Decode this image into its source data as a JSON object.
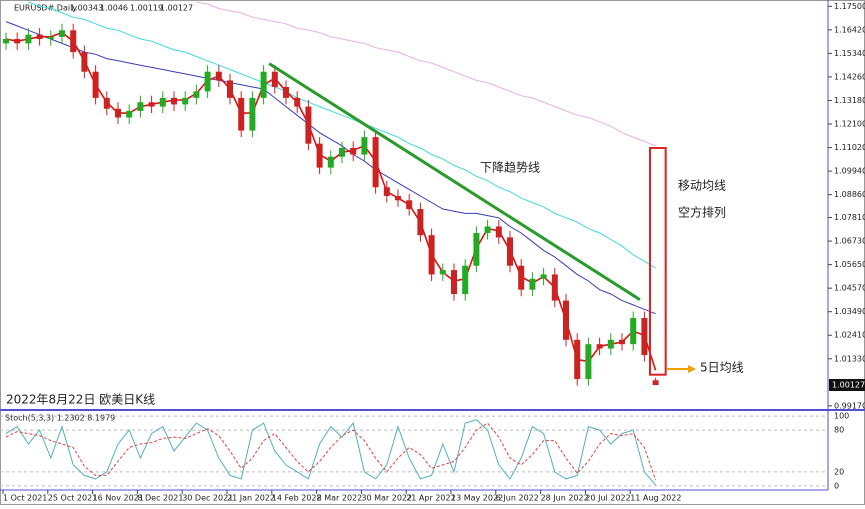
{
  "chart_data": [
    {
      "type": "candlestick",
      "symbol": "EURUSD#,Daily",
      "subtitle": "2022年8月22日 欧美日K线",
      "categories": [
        "1 Oct 2021",
        null,
        null,
        null,
        "25 Oct 2021",
        null,
        null,
        null,
        "16 Nov 2021",
        null,
        null,
        null,
        "8 Dec 2021",
        null,
        null,
        null,
        "30 Dec 2021",
        null,
        null,
        null,
        "21 Jan 2022",
        null,
        null,
        null,
        "14 Feb 2022",
        null,
        null,
        null,
        "8 Mar 2022",
        null,
        null,
        null,
        "30 Mar 2022",
        null,
        null,
        null,
        "21 Apr 2022",
        null,
        null,
        null,
        "13 May 2022",
        null,
        null,
        null,
        "6 Jun 2022",
        null,
        null,
        null,
        "28 Jun 2022",
        null,
        null,
        null,
        "20 Jul 2022",
        null,
        null,
        null,
        "11 Aug 2022",
        null,
        null
      ],
      "open": [
        1.158,
        1.16,
        1.158,
        1.162,
        1.16,
        1.161,
        1.164,
        1.154,
        1.145,
        1.133,
        1.128,
        1.124,
        1.127,
        1.131,
        1.129,
        1.133,
        1.13,
        1.133,
        1.136,
        1.145,
        1.141,
        1.133,
        1.118,
        1.133,
        1.145,
        1.138,
        1.133,
        1.129,
        1.112,
        1.101,
        1.106,
        1.11,
        1.107,
        1.115,
        1.092,
        1.088,
        1.086,
        1.082,
        1.07,
        1.052,
        1.054,
        1.043,
        1.056,
        1.071,
        1.074,
        1.069,
        1.056,
        1.045,
        1.05,
        1.052,
        1.04,
        1.022,
        1.004,
        1.02,
        1.018,
        1.022,
        1.02,
        1.032,
        1.00343
      ],
      "high": [
        1.163,
        1.163,
        1.165,
        1.165,
        1.164,
        1.167,
        1.167,
        1.157,
        1.148,
        1.136,
        1.131,
        1.13,
        1.134,
        1.134,
        1.136,
        1.136,
        1.136,
        1.139,
        1.148,
        1.148,
        1.144,
        1.136,
        1.136,
        1.148,
        1.148,
        1.141,
        1.136,
        1.132,
        1.115,
        1.109,
        1.113,
        1.113,
        1.118,
        1.118,
        1.095,
        1.091,
        1.089,
        1.085,
        1.073,
        1.057,
        1.057,
        1.059,
        1.074,
        1.077,
        1.077,
        1.072,
        1.059,
        1.053,
        1.055,
        1.055,
        1.043,
        1.025,
        1.023,
        1.023,
        1.025,
        1.025,
        1.035,
        1.035,
        1.0046
      ],
      "low": [
        1.155,
        1.155,
        1.155,
        1.157,
        1.157,
        1.158,
        1.151,
        1.142,
        1.13,
        1.125,
        1.121,
        1.121,
        1.124,
        1.126,
        1.126,
        1.127,
        1.127,
        1.13,
        1.133,
        1.138,
        1.13,
        1.115,
        1.115,
        1.13,
        1.135,
        1.13,
        1.126,
        1.109,
        1.098,
        1.098,
        1.103,
        1.104,
        1.104,
        1.089,
        1.085,
        1.083,
        1.079,
        1.067,
        1.049,
        1.049,
        1.04,
        1.04,
        1.053,
        1.068,
        1.066,
        1.053,
        1.042,
        1.042,
        1.047,
        1.037,
        1.019,
        1.001,
        1.001,
        1.015,
        1.015,
        1.017,
        1.017,
        1.012,
        1.00119
      ],
      "close": [
        1.16,
        1.158,
        1.162,
        1.16,
        1.161,
        1.164,
        1.154,
        1.145,
        1.133,
        1.128,
        1.124,
        1.127,
        1.131,
        1.129,
        1.133,
        1.13,
        1.133,
        1.136,
        1.145,
        1.141,
        1.133,
        1.118,
        1.133,
        1.145,
        1.138,
        1.133,
        1.129,
        1.112,
        1.101,
        1.106,
        1.11,
        1.107,
        1.115,
        1.092,
        1.088,
        1.086,
        1.082,
        1.07,
        1.052,
        1.054,
        1.043,
        1.056,
        1.071,
        1.074,
        1.069,
        1.056,
        1.045,
        1.05,
        1.052,
        1.04,
        1.022,
        1.004,
        1.02,
        1.018,
        1.022,
        1.02,
        1.032,
        1.015,
        1.00127
      ],
      "up_color": "#22aa22",
      "down_color": "#cc2222",
      "overlays": [
        {
          "color": "#e8b0e8",
          "values": [
            null,
            null,
            null,
            null,
            null,
            null,
            null,
            null,
            null,
            null,
            null,
            null,
            null,
            null,
            null,
            null,
            null,
            1.177,
            1.176,
            1.174,
            1.173,
            1.172,
            1.17,
            1.169,
            1.168,
            1.167,
            1.165,
            1.164,
            1.163,
            1.161,
            1.16,
            1.159,
            1.158,
            1.156,
            1.155,
            1.154,
            1.152,
            1.15,
            1.149,
            1.147,
            1.145,
            1.143,
            1.141,
            1.14,
            1.138,
            1.136,
            1.134,
            1.133,
            1.131,
            1.129,
            1.127,
            1.125,
            1.124,
            1.122,
            1.12,
            1.117,
            1.115,
            1.113,
            1.111
          ]
        },
        {
          "color": "#40d8e0",
          "values": [
            null,
            null,
            1.177,
            1.175,
            1.174,
            1.172,
            1.17,
            1.169,
            1.167,
            1.165,
            1.164,
            1.162,
            1.16,
            1.159,
            1.157,
            1.155,
            1.154,
            1.152,
            1.15,
            1.148,
            1.146,
            1.144,
            1.142,
            1.14,
            1.138,
            1.136,
            1.133,
            1.131,
            1.129,
            1.127,
            1.125,
            1.123,
            1.121,
            1.119,
            1.117,
            1.115,
            1.112,
            1.11,
            1.107,
            1.105,
            1.102,
            1.1,
            1.097,
            1.095,
            1.092,
            1.09,
            1.087,
            1.085,
            1.083,
            1.08,
            1.078,
            1.076,
            1.073,
            1.071,
            1.068,
            1.065,
            1.061,
            1.058,
            1.055
          ]
        },
        {
          "color": "#3a3ab8",
          "values": [
            1.168,
            1.166,
            1.164,
            1.162,
            1.16,
            1.158,
            1.156,
            1.154,
            1.153,
            1.151,
            1.15,
            1.149,
            1.148,
            1.147,
            1.146,
            1.145,
            1.144,
            1.143,
            1.142,
            1.141,
            1.14,
            1.139,
            1.138,
            1.137,
            1.133,
            1.129,
            1.125,
            1.121,
            1.117,
            1.114,
            1.111,
            1.107,
            1.104,
            1.1,
            1.097,
            1.094,
            1.091,
            1.088,
            1.085,
            1.082,
            1.081,
            1.08,
            1.08,
            1.079,
            1.078,
            1.074,
            1.071,
            1.067,
            1.063,
            1.06,
            1.056,
            1.052,
            1.049,
            1.045,
            1.043,
            1.04,
            1.038,
            1.036,
            1.034
          ]
        },
        {
          "color": "#dd1111",
          "values": [
            1.16,
            1.159,
            1.16,
            1.161,
            1.161,
            1.163,
            1.159,
            1.15,
            1.139,
            1.131,
            1.126,
            1.126,
            1.129,
            1.13,
            1.131,
            1.132,
            1.132,
            1.135,
            1.141,
            1.143,
            1.137,
            1.126,
            1.126,
            1.139,
            1.142,
            1.136,
            1.131,
            1.121,
            1.107,
            1.104,
            1.108,
            1.109,
            1.111,
            1.104,
            1.09,
            1.087,
            1.084,
            1.076,
            1.061,
            1.053,
            1.049,
            1.05,
            1.064,
            1.073,
            1.072,
            1.063,
            1.051,
            1.048,
            1.051,
            1.046,
            1.031,
            1.013,
            1.012,
            1.019,
            1.02,
            1.021,
            1.026,
            1.024,
            1.008
          ]
        }
      ],
      "trend_line": {
        "label": "下降趋势线",
        "color": "#2a9a2a",
        "start": [
          23.5,
          1.1487
        ],
        "end": [
          56.6,
          1.0404
        ]
      },
      "box": {
        "color": "#dd2222",
        "from": [
          57.5,
          1.11
        ],
        "to": [
          58.9,
          1.006
        ],
        "lines": [
          "移动均线",
          "空方排列"
        ]
      },
      "arrow_label": "5日均线",
      "ylim": [
        0.9898,
        1.1779
      ],
      "yticks": [
        {
          "value": 0.9917,
          "label": "0.99170"
        },
        {
          "value": 1.0133,
          "label": "1.01330"
        },
        {
          "value": 1.0241,
          "label": "1.02410"
        },
        {
          "value": 1.0349,
          "label": "1.03490"
        },
        {
          "value": 1.0457,
          "label": "1.04570"
        },
        {
          "value": 1.0565,
          "label": "1.05650"
        },
        {
          "value": 1.0673,
          "label": "1.06730"
        },
        {
          "value": 1.0781,
          "label": "1.07810"
        },
        {
          "value": 1.0886,
          "label": "1.08860"
        },
        {
          "value": 1.0994,
          "label": "1.09940"
        },
        {
          "value": 1.1102,
          "label": "1.11020"
        },
        {
          "value": 1.121,
          "label": "1.12100"
        },
        {
          "value": 1.1318,
          "label": "1.13180"
        },
        {
          "value": 1.1426,
          "label": "1.14260"
        },
        {
          "value": 1.1534,
          "label": "1.15340"
        },
        {
          "value": 1.1642,
          "label": "1.16420"
        },
        {
          "value": 1.175,
          "label": "1.17500"
        }
      ]
    },
    {
      "type": "line",
      "title": "Stoch(5,3,3) 1.2302 8.1979",
      "series": [
        {
          "color": "#4fb0c0",
          "values": [
            75,
            85,
            60,
            80,
            40,
            85,
            30,
            15,
            10,
            20,
            60,
            80,
            40,
            75,
            85,
            50,
            70,
            90,
            80,
            40,
            15,
            10,
            80,
            90,
            50,
            30,
            20,
            10,
            60,
            85,
            70,
            90,
            20,
            10,
            30,
            85,
            40,
            10,
            15,
            60,
            20,
            90,
            95,
            80,
            30,
            10,
            40,
            85,
            75,
            20,
            10,
            15,
            85,
            80,
            60,
            75,
            80,
            20,
            1.2302
          ]
        },
        {
          "color": "#e04040",
          "values": [
            70,
            78,
            75,
            72,
            65,
            60,
            55,
            28,
            15,
            15,
            35,
            55,
            60,
            62,
            68,
            70,
            68,
            75,
            82,
            72,
            50,
            25,
            40,
            65,
            75,
            55,
            35,
            20,
            35,
            55,
            72,
            80,
            65,
            40,
            20,
            40,
            55,
            45,
            25,
            30,
            35,
            55,
            80,
            90,
            70,
            40,
            30,
            45,
            65,
            65,
            40,
            18,
            35,
            60,
            75,
            72,
            75,
            55,
            8.1979
          ]
        }
      ],
      "ylim": [
        -6,
        106
      ],
      "yticks": [
        0,
        20,
        80,
        100
      ]
    }
  ]
}
